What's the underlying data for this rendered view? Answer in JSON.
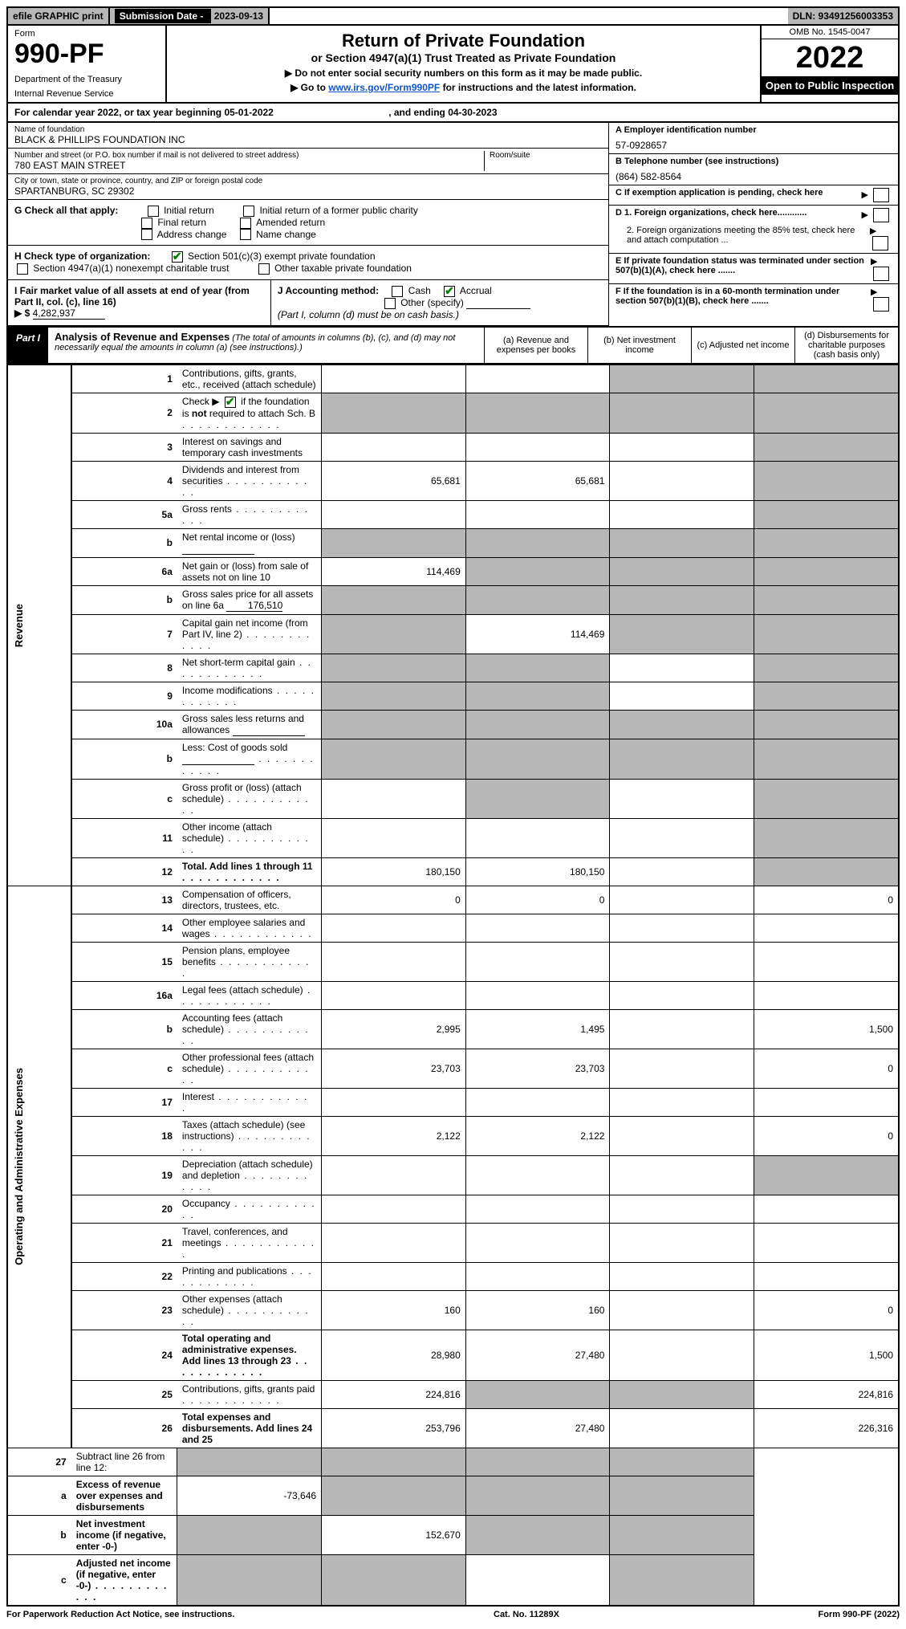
{
  "topbar": {
    "efile": "efile GRAPHIC print",
    "sub_label": "Submission Date - ",
    "sub_date": "2023-09-13",
    "dln": "DLN: 93491256003353"
  },
  "header": {
    "form_label": "Form",
    "form_no": "990-PF",
    "dept": "Department of the Treasury",
    "irs": "Internal Revenue Service",
    "title": "Return of Private Foundation",
    "subtitle": "or Section 4947(a)(1) Trust Treated as Private Foundation",
    "instr1": "▶ Do not enter social security numbers on this form as it may be made public.",
    "instr2_pre": "▶ Go to ",
    "instr2_link": "www.irs.gov/Form990PF",
    "instr2_post": " for instructions and the latest information.",
    "omb": "OMB No. 1545-0047",
    "year": "2022",
    "open": "Open to Public Inspection"
  },
  "calyear": {
    "text_pre": "For calendar year 2022, or tax year beginning ",
    "begin": "05-01-2022",
    "mid": " , and ending ",
    "end": "04-30-2023"
  },
  "foundation": {
    "name_label": "Name of foundation",
    "name": "BLACK & PHILLIPS FOUNDATION INC",
    "addr_label": "Number and street (or P.O. box number if mail is not delivered to street address)",
    "addr": "780 EAST MAIN STREET",
    "room_label": "Room/suite",
    "city_label": "City or town, state or province, country, and ZIP or foreign postal code",
    "city": "SPARTANBURG, SC  29302",
    "ein_label": "A Employer identification number",
    "ein": "57-0928657",
    "phone_label": "B Telephone number (see instructions)",
    "phone": "(864) 582-8564",
    "c_label": "C If exemption application is pending, check here"
  },
  "sectionG": {
    "label": "G Check all that apply:",
    "opts": [
      "Initial return",
      "Initial return of a former public charity",
      "Final return",
      "Amended return",
      "Address change",
      "Name change"
    ]
  },
  "sectionD": {
    "d1": "D 1. Foreign organizations, check here............",
    "d2": "2. Foreign organizations meeting the 85% test, check here and attach computation ..."
  },
  "sectionH": {
    "label": "H Check type of organization:",
    "opt1": "Section 501(c)(3) exempt private foundation",
    "opt2": "Section 4947(a)(1) nonexempt charitable trust",
    "opt3": "Other taxable private foundation"
  },
  "sectionE": {
    "label": "E  If private foundation status was terminated under section 507(b)(1)(A), check here ......."
  },
  "sectionI": {
    "label": "I Fair market value of all assets at end of year (from Part II, col. (c), line 16)",
    "arrow": "▶ $",
    "value": "4,282,937"
  },
  "sectionJ": {
    "label": "J Accounting method:",
    "cash": "Cash",
    "accrual": "Accrual",
    "other": "Other (specify)",
    "note": "(Part I, column (d) must be on cash basis.)"
  },
  "sectionF": {
    "label": "F  If the foundation is in a 60-month termination under section 507(b)(1)(B), check here ......."
  },
  "part1": {
    "label": "Part I",
    "title": "Analysis of Revenue and Expenses",
    "sub": "(The total of amounts in columns (b), (c), and (d) may not necessarily equal the amounts in column (a) (see instructions).)",
    "col_a": "(a)  Revenue and expenses per books",
    "col_b": "(b)  Net investment income",
    "col_c": "(c)  Adjusted net income",
    "col_d": "(d)  Disbursements for charitable purposes (cash basis only)"
  },
  "sidelabels": {
    "revenue": "Revenue",
    "expenses": "Operating and Administrative Expenses"
  },
  "rows": [
    {
      "n": "1",
      "desc": "Contributions, gifts, grants, etc., received (attach schedule)",
      "a": "",
      "b": "",
      "c": "shaded",
      "d": "shaded"
    },
    {
      "n": "2",
      "desc": "Check ▶ ☑ if the foundation is not required to attach Sch. B",
      "dots": true,
      "a": "shaded",
      "b": "shaded",
      "c": "shaded",
      "d": "shaded",
      "checked": true
    },
    {
      "n": "3",
      "desc": "Interest on savings and temporary cash investments",
      "a": "",
      "b": "",
      "c": "",
      "d": "shaded"
    },
    {
      "n": "4",
      "desc": "Dividends and interest from securities",
      "dots": true,
      "a": "65,681",
      "b": "65,681",
      "c": "",
      "d": "shaded"
    },
    {
      "n": "5a",
      "desc": "Gross rents",
      "dots": true,
      "a": "",
      "b": "",
      "c": "",
      "d": "shaded"
    },
    {
      "n": "b",
      "desc": "Net rental income or (loss)",
      "inline_blank": true,
      "a": "shaded",
      "b": "shaded",
      "c": "shaded",
      "d": "shaded"
    },
    {
      "n": "6a",
      "desc": "Net gain or (loss) from sale of assets not on line 10",
      "a": "114,469",
      "b": "shaded",
      "c": "shaded",
      "d": "shaded"
    },
    {
      "n": "b",
      "desc": "Gross sales price for all assets on line 6a",
      "inline_val": "176,510",
      "a": "shaded",
      "b": "shaded",
      "c": "shaded",
      "d": "shaded"
    },
    {
      "n": "7",
      "desc": "Capital gain net income (from Part IV, line 2)",
      "dots": true,
      "a": "shaded",
      "b": "114,469",
      "c": "shaded",
      "d": "shaded"
    },
    {
      "n": "8",
      "desc": "Net short-term capital gain",
      "dots": true,
      "a": "shaded",
      "b": "shaded",
      "c": "",
      "d": "shaded"
    },
    {
      "n": "9",
      "desc": "Income modifications",
      "dots": true,
      "a": "shaded",
      "b": "shaded",
      "c": "",
      "d": "shaded"
    },
    {
      "n": "10a",
      "desc": "Gross sales less returns and allowances",
      "inline_blank": true,
      "a": "shaded",
      "b": "shaded",
      "c": "shaded",
      "d": "shaded"
    },
    {
      "n": "b",
      "desc": "Less: Cost of goods sold",
      "dots": true,
      "inline_blank": true,
      "a": "shaded",
      "b": "shaded",
      "c": "shaded",
      "d": "shaded"
    },
    {
      "n": "c",
      "desc": "Gross profit or (loss) (attach schedule)",
      "dots": true,
      "a": "",
      "b": "shaded",
      "c": "",
      "d": "shaded"
    },
    {
      "n": "11",
      "desc": "Other income (attach schedule)",
      "dots": true,
      "a": "",
      "b": "",
      "c": "",
      "d": "shaded"
    },
    {
      "n": "12",
      "desc": "Total. Add lines 1 through 11",
      "dots": true,
      "bold": true,
      "a": "180,150",
      "b": "180,150",
      "c": "",
      "d": "shaded"
    }
  ],
  "rows2": [
    {
      "n": "13",
      "desc": "Compensation of officers, directors, trustees, etc.",
      "a": "0",
      "b": "0",
      "c": "",
      "d": "0"
    },
    {
      "n": "14",
      "desc": "Other employee salaries and wages",
      "dots": true,
      "a": "",
      "b": "",
      "c": "",
      "d": ""
    },
    {
      "n": "15",
      "desc": "Pension plans, employee benefits",
      "dots": true,
      "a": "",
      "b": "",
      "c": "",
      "d": ""
    },
    {
      "n": "16a",
      "desc": "Legal fees (attach schedule)",
      "dots": true,
      "a": "",
      "b": "",
      "c": "",
      "d": ""
    },
    {
      "n": "b",
      "desc": "Accounting fees (attach schedule)",
      "dots": true,
      "a": "2,995",
      "b": "1,495",
      "c": "",
      "d": "1,500"
    },
    {
      "n": "c",
      "desc": "Other professional fees (attach schedule)",
      "dots": true,
      "a": "23,703",
      "b": "23,703",
      "c": "",
      "d": "0"
    },
    {
      "n": "17",
      "desc": "Interest",
      "dots": true,
      "a": "",
      "b": "",
      "c": "",
      "d": ""
    },
    {
      "n": "18",
      "desc": "Taxes (attach schedule) (see instructions)",
      "dots": true,
      "a": "2,122",
      "b": "2,122",
      "c": "",
      "d": "0"
    },
    {
      "n": "19",
      "desc": "Depreciation (attach schedule) and depletion",
      "dots": true,
      "a": "",
      "b": "",
      "c": "",
      "d": "shaded"
    },
    {
      "n": "20",
      "desc": "Occupancy",
      "dots": true,
      "a": "",
      "b": "",
      "c": "",
      "d": ""
    },
    {
      "n": "21",
      "desc": "Travel, conferences, and meetings",
      "dots": true,
      "a": "",
      "b": "",
      "c": "",
      "d": ""
    },
    {
      "n": "22",
      "desc": "Printing and publications",
      "dots": true,
      "a": "",
      "b": "",
      "c": "",
      "d": ""
    },
    {
      "n": "23",
      "desc": "Other expenses (attach schedule)",
      "dots": true,
      "a": "160",
      "b": "160",
      "c": "",
      "d": "0"
    },
    {
      "n": "24",
      "desc": "Total operating and administrative expenses. Add lines 13 through 23",
      "dots": true,
      "bold": true,
      "a": "28,980",
      "b": "27,480",
      "c": "",
      "d": "1,500"
    },
    {
      "n": "25",
      "desc": "Contributions, gifts, grants paid",
      "dots": true,
      "a": "224,816",
      "b": "shaded",
      "c": "shaded",
      "d": "224,816"
    },
    {
      "n": "26",
      "desc": "Total expenses and disbursements. Add lines 24 and 25",
      "bold": true,
      "a": "253,796",
      "b": "27,480",
      "c": "",
      "d": "226,316"
    }
  ],
  "rows3": [
    {
      "n": "27",
      "desc": "Subtract line 26 from line 12:",
      "a": "shaded",
      "b": "shaded",
      "c": "shaded",
      "d": "shaded"
    },
    {
      "n": "a",
      "desc": "Excess of revenue over expenses and disbursements",
      "bold": true,
      "a": "-73,646",
      "b": "shaded",
      "c": "shaded",
      "d": "shaded"
    },
    {
      "n": "b",
      "desc": "Net investment income (if negative, enter -0-)",
      "bold": true,
      "a": "shaded",
      "b": "152,670",
      "c": "shaded",
      "d": "shaded"
    },
    {
      "n": "c",
      "desc": "Adjusted net income (if negative, enter -0-)",
      "dots": true,
      "bold": true,
      "a": "shaded",
      "b": "shaded",
      "c": "",
      "d": "shaded"
    }
  ],
  "footer": {
    "pra": "For Paperwork Reduction Act Notice, see instructions.",
    "cat": "Cat. No. 11289X",
    "form": "Form 990-PF (2022)"
  }
}
